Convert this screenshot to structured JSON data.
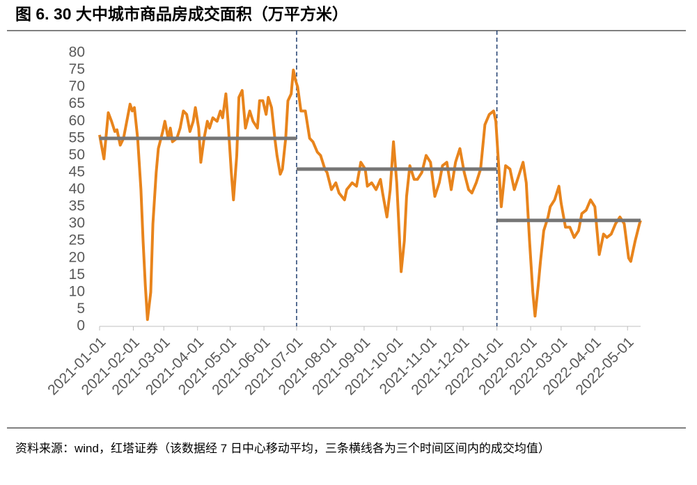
{
  "chart_data": {
    "type": "line",
    "title": "图 6. 30 大中城市商品房成交面积（万平方米）",
    "source": "资料来源：wind，红塔证券（该数据经 7 日中心移动平均，三条横线各为三个时间区间内的成交均值）",
    "x": [
      "2021-01-01",
      "2021-01-05",
      "2021-01-09",
      "2021-01-12",
      "2021-01-15",
      "2021-01-17",
      "2021-01-20",
      "2021-01-23",
      "2021-01-26",
      "2021-01-29",
      "2021-01-31",
      "2021-02-02",
      "2021-02-05",
      "2021-02-08",
      "2021-02-10",
      "2021-02-12",
      "2021-02-14",
      "2021-02-17",
      "2021-02-19",
      "2021-02-22",
      "2021-02-24",
      "2021-02-28",
      "2021-03-02",
      "2021-03-05",
      "2021-03-07",
      "2021-03-09",
      "2021-03-13",
      "2021-03-16",
      "2021-03-19",
      "2021-03-22",
      "2021-03-25",
      "2021-03-28",
      "2021-03-30",
      "2021-04-02",
      "2021-04-04",
      "2021-04-07",
      "2021-04-10",
      "2021-04-12",
      "2021-04-15",
      "2021-04-19",
      "2021-04-22",
      "2021-04-24",
      "2021-04-27",
      "2021-04-29",
      "2021-05-02",
      "2021-05-04",
      "2021-05-07",
      "2021-05-09",
      "2021-05-12",
      "2021-05-15",
      "2021-05-19",
      "2021-05-22",
      "2021-05-26",
      "2021-05-28",
      "2021-05-31",
      "2021-06-03",
      "2021-06-05",
      "2021-06-08",
      "2021-06-11",
      "2021-06-13",
      "2021-06-16",
      "2021-06-18",
      "2021-06-21",
      "2021-06-23",
      "2021-06-26",
      "2021-06-28",
      "2021-06-30",
      "2021-07-02",
      "2021-07-05",
      "2021-07-09",
      "2021-07-13",
      "2021-07-16",
      "2021-07-20",
      "2021-07-23",
      "2021-07-27",
      "2021-07-29",
      "2021-08-02",
      "2021-08-06",
      "2021-08-09",
      "2021-08-14",
      "2021-08-16",
      "2021-08-21",
      "2021-08-25",
      "2021-08-29",
      "2021-09-02",
      "2021-09-04",
      "2021-09-08",
      "2021-09-12",
      "2021-09-16",
      "2021-09-18",
      "2021-09-22",
      "2021-09-25",
      "2021-09-28",
      "2021-10-01",
      "2021-10-05",
      "2021-10-08",
      "2021-10-10",
      "2021-10-13",
      "2021-10-17",
      "2021-10-20",
      "2021-10-24",
      "2021-10-28",
      "2021-11-01",
      "2021-11-05",
      "2021-11-09",
      "2021-11-12",
      "2021-11-16",
      "2021-11-20",
      "2021-11-24",
      "2021-11-28",
      "2021-12-02",
      "2021-12-06",
      "2021-12-09",
      "2021-12-13",
      "2021-12-17",
      "2021-12-21",
      "2021-12-25",
      "2021-12-29",
      "2021-12-31",
      "2022-01-03",
      "2022-01-05",
      "2022-01-09",
      "2022-01-13",
      "2022-01-17",
      "2022-01-21",
      "2022-01-25",
      "2022-01-28",
      "2022-01-31",
      "2022-02-03",
      "2022-02-05",
      "2022-02-08",
      "2022-02-10",
      "2022-02-13",
      "2022-02-17",
      "2022-02-19",
      "2022-02-23",
      "2022-02-27",
      "2022-03-01",
      "2022-03-05",
      "2022-03-09",
      "2022-03-13",
      "2022-03-17",
      "2022-03-20",
      "2022-03-24",
      "2022-03-28",
      "2022-04-01",
      "2022-04-05",
      "2022-04-09",
      "2022-04-12",
      "2022-04-16",
      "2022-04-20",
      "2022-04-24",
      "2022-04-28",
      "2022-05-02",
      "2022-05-04",
      "2022-05-08",
      "2022-05-12",
      "2022-05-13"
    ],
    "series": [
      {
        "name": "大中城市商品房成交面积",
        "color": "#e8841c",
        "values": [
          56,
          49,
          62.5,
          60,
          57,
          57.5,
          53,
          55,
          60,
          65,
          63,
          64,
          55,
          40,
          25,
          12,
          2,
          10,
          30,
          45,
          52,
          57,
          60,
          55,
          58,
          54,
          55,
          58,
          63,
          62,
          57,
          60,
          64,
          58,
          48,
          55,
          60,
          58,
          61,
          60,
          63,
          61,
          68,
          60,
          45,
          37,
          50,
          67,
          69,
          58,
          63,
          60,
          58,
          66,
          66,
          62,
          67,
          64,
          55,
          50,
          44.5,
          46,
          55,
          66,
          68,
          75,
          72,
          70,
          63,
          63,
          55,
          54,
          51,
          50,
          46,
          45,
          40,
          42,
          39,
          37,
          40,
          42,
          41,
          48,
          46,
          41,
          42,
          40,
          43,
          39,
          32,
          40,
          54,
          42,
          16,
          25,
          38,
          47,
          43,
          43,
          45,
          50,
          48,
          38,
          42,
          47,
          48,
          40,
          48,
          52,
          45,
          40,
          39,
          42,
          46,
          59,
          62,
          63,
          60,
          45,
          35,
          47,
          46,
          40,
          44,
          48,
          42,
          25,
          10,
          3,
          12,
          19,
          28,
          32,
          35,
          37,
          41,
          36,
          29,
          29,
          26,
          28,
          33,
          34,
          37,
          35,
          21,
          27,
          26,
          27,
          30,
          32,
          30,
          20,
          19,
          25,
          30,
          31
        ]
      }
    ],
    "reference_lines": [
      {
        "start": "2021-01-01",
        "end": "2021-07-01",
        "value": 55
      },
      {
        "start": "2021-07-01",
        "end": "2022-01-01",
        "value": 46
      },
      {
        "start": "2022-01-01",
        "end": "2022-05-13",
        "value": 31
      }
    ],
    "reference_color": "#767676",
    "divider_color": "#1f3d6e",
    "xlim": [
      "2021-01-01",
      "2022-05-13"
    ],
    "xticks": [
      "2021-01-01",
      "2021-02-01",
      "2021-03-01",
      "2021-04-01",
      "2021-05-01",
      "2021-06-01",
      "2021-07-01",
      "2021-08-01",
      "2021-09-01",
      "2021-10-01",
      "2021-11-01",
      "2021-12-01",
      "2022-01-01",
      "2022-02-01",
      "2022-03-01",
      "2022-04-01",
      "2022-05-01"
    ],
    "ylim": [
      0,
      80
    ],
    "yticks": [
      0,
      5,
      10,
      15,
      20,
      25,
      30,
      35,
      40,
      45,
      50,
      55,
      60,
      65,
      70,
      75,
      80
    ],
    "grid": false
  }
}
